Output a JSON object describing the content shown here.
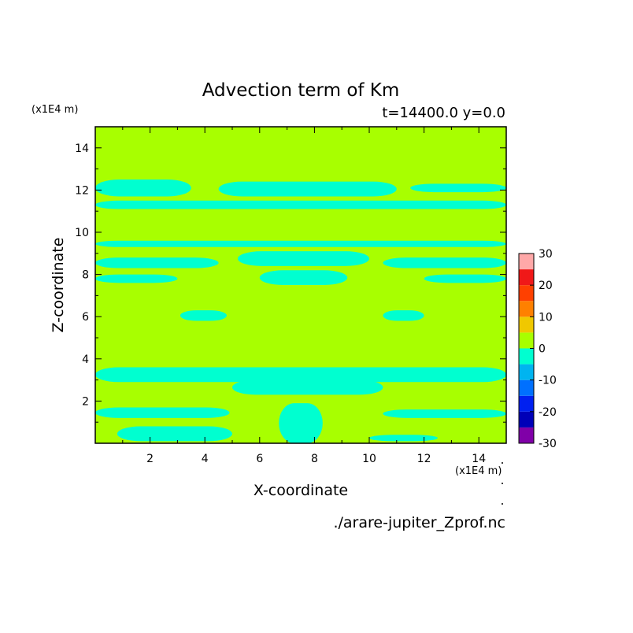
{
  "chart_data": {
    "type": "heatmap",
    "title": "Advection term of Km",
    "subtitle": "t=14400.0 y=0.0",
    "xlabel": "X-coordinate",
    "ylabel": "Z-coordinate",
    "x_unit": "(x1E4 m)",
    "y_unit": "(x1E4 m)",
    "source_file": "./arare-jupiter_Zprof.nc",
    "xlim": [
      0,
      15
    ],
    "ylim": [
      0,
      15
    ],
    "x_ticks": [
      "2",
      "4",
      "6",
      "8",
      "10",
      "12",
      "14"
    ],
    "y_ticks": [
      "2",
      "4",
      "6",
      "8",
      "10",
      "12",
      "14"
    ],
    "grid": false,
    "colorbar": {
      "placement": "right",
      "levels": [
        -30,
        -25,
        -20,
        -15,
        -10,
        -5,
        0,
        5,
        10,
        15,
        20,
        25,
        30
      ],
      "tick_labels": [
        "30",
        "20",
        "10",
        "0",
        "-10",
        "-20",
        "-30"
      ],
      "colors": [
        "#8000a8",
        "#0000b8",
        "#0020f0",
        "#0070ff",
        "#00b4f0",
        "#00ffd0",
        "#a8ff00",
        "#f0c800",
        "#ff8000",
        "#ff4000",
        "#f01818",
        "#ffa8a8"
      ]
    },
    "field": {
      "background_level": "0 to 5",
      "background_color": "#a8ff00",
      "patch_level": "-5 to 0",
      "patch_color": "#00ffd0",
      "patches": [
        {
          "desc": "upper band left",
          "x": [
            0,
            3.5
          ],
          "z": [
            11.7,
            12.5
          ]
        },
        {
          "desc": "upper band center",
          "x": [
            4.5,
            11
          ],
          "z": [
            11.7,
            12.4
          ]
        },
        {
          "desc": "upper band right",
          "x": [
            11.5,
            15
          ],
          "z": [
            11.9,
            12.3
          ]
        },
        {
          "desc": "band z~11.3",
          "x": [
            0,
            15
          ],
          "z": [
            11.1,
            11.5
          ]
        },
        {
          "desc": "band z~9.4",
          "x": [
            0,
            15
          ],
          "z": [
            9.3,
            9.6
          ]
        },
        {
          "desc": "band z~8.6 left",
          "x": [
            0,
            4.5
          ],
          "z": [
            8.3,
            8.8
          ]
        },
        {
          "desc": "band z~8.6 right",
          "x": [
            10.5,
            15
          ],
          "z": [
            8.3,
            8.8
          ]
        },
        {
          "desc": "central lens z~8.6",
          "x": [
            5.2,
            10
          ],
          "z": [
            8.4,
            9.1
          ]
        },
        {
          "desc": "central lens z~7.8",
          "x": [
            6,
            9.2
          ],
          "z": [
            7.5,
            8.2
          ]
        },
        {
          "desc": "band z~7.8 left",
          "x": [
            0,
            3
          ],
          "z": [
            7.6,
            8
          ]
        },
        {
          "desc": "band z~7.8 right",
          "x": [
            12,
            15
          ],
          "z": [
            7.6,
            8
          ]
        },
        {
          "desc": "lens z~6 left",
          "x": [
            3.1,
            4.8
          ],
          "z": [
            5.8,
            6.3
          ]
        },
        {
          "desc": "lens z~6 right",
          "x": [
            10.5,
            12
          ],
          "z": [
            5.8,
            6.3
          ]
        },
        {
          "desc": "band z~3.3",
          "x": [
            0,
            15
          ],
          "z": [
            2.9,
            3.6
          ]
        },
        {
          "desc": "band z~2.7 center",
          "x": [
            5,
            10.5
          ],
          "z": [
            2.3,
            3
          ]
        },
        {
          "desc": "band z~1.6 left",
          "x": [
            0,
            4.9
          ],
          "z": [
            1.2,
            1.7
          ]
        },
        {
          "desc": "band z~1.6 right",
          "x": [
            10.5,
            15
          ],
          "z": [
            1.2,
            1.6
          ]
        },
        {
          "desc": "bottom band left",
          "x": [
            0.8,
            5
          ],
          "z": [
            0.1,
            0.8
          ]
        },
        {
          "desc": "bottom band right",
          "x": [
            10,
            12.5
          ],
          "z": [
            0.1,
            0.4
          ]
        },
        {
          "desc": "bottom column",
          "x": [
            6.7,
            8.3
          ],
          "z": [
            0,
            1.9
          ]
        }
      ]
    }
  }
}
